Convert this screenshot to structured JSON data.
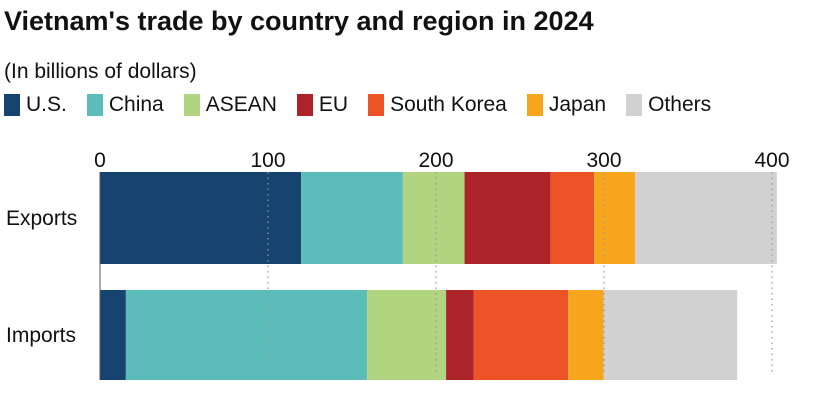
{
  "chart_data": {
    "type": "bar",
    "orientation": "horizontal",
    "stacked": true,
    "title": "Vietnam's trade by country and region in 2024",
    "subtitle": "(In billions of dollars)",
    "categories": [
      "Exports",
      "Imports"
    ],
    "series": [
      {
        "name": "U.S.",
        "color": "#17436f",
        "values": [
          119.7,
          15.4
        ]
      },
      {
        "name": "China",
        "color": "#5bbcb9",
        "values": [
          60.6,
          143.6
        ]
      },
      {
        "name": "ASEAN",
        "color": "#b0d480",
        "values": [
          36.7,
          47.0
        ]
      },
      {
        "name": "EU",
        "color": "#ad232a",
        "values": [
          51.1,
          16.3
        ]
      },
      {
        "name": "South Korea",
        "color": "#ec5327",
        "values": [
          26.0,
          56.4
        ]
      },
      {
        "name": "Japan",
        "color": "#f6a51d",
        "values": [
          24.5,
          21.0
        ]
      },
      {
        "name": "Others",
        "color": "#d1d1d1",
        "values": [
          84.3,
          79.6
        ]
      }
    ],
    "xlim": [
      0,
      400
    ],
    "xticks": [
      "0",
      "100",
      "200",
      "300",
      "400"
    ],
    "tick_values": [
      0,
      100,
      200,
      300,
      400
    ],
    "grid": "vertical dotted",
    "legend_position": "top"
  }
}
